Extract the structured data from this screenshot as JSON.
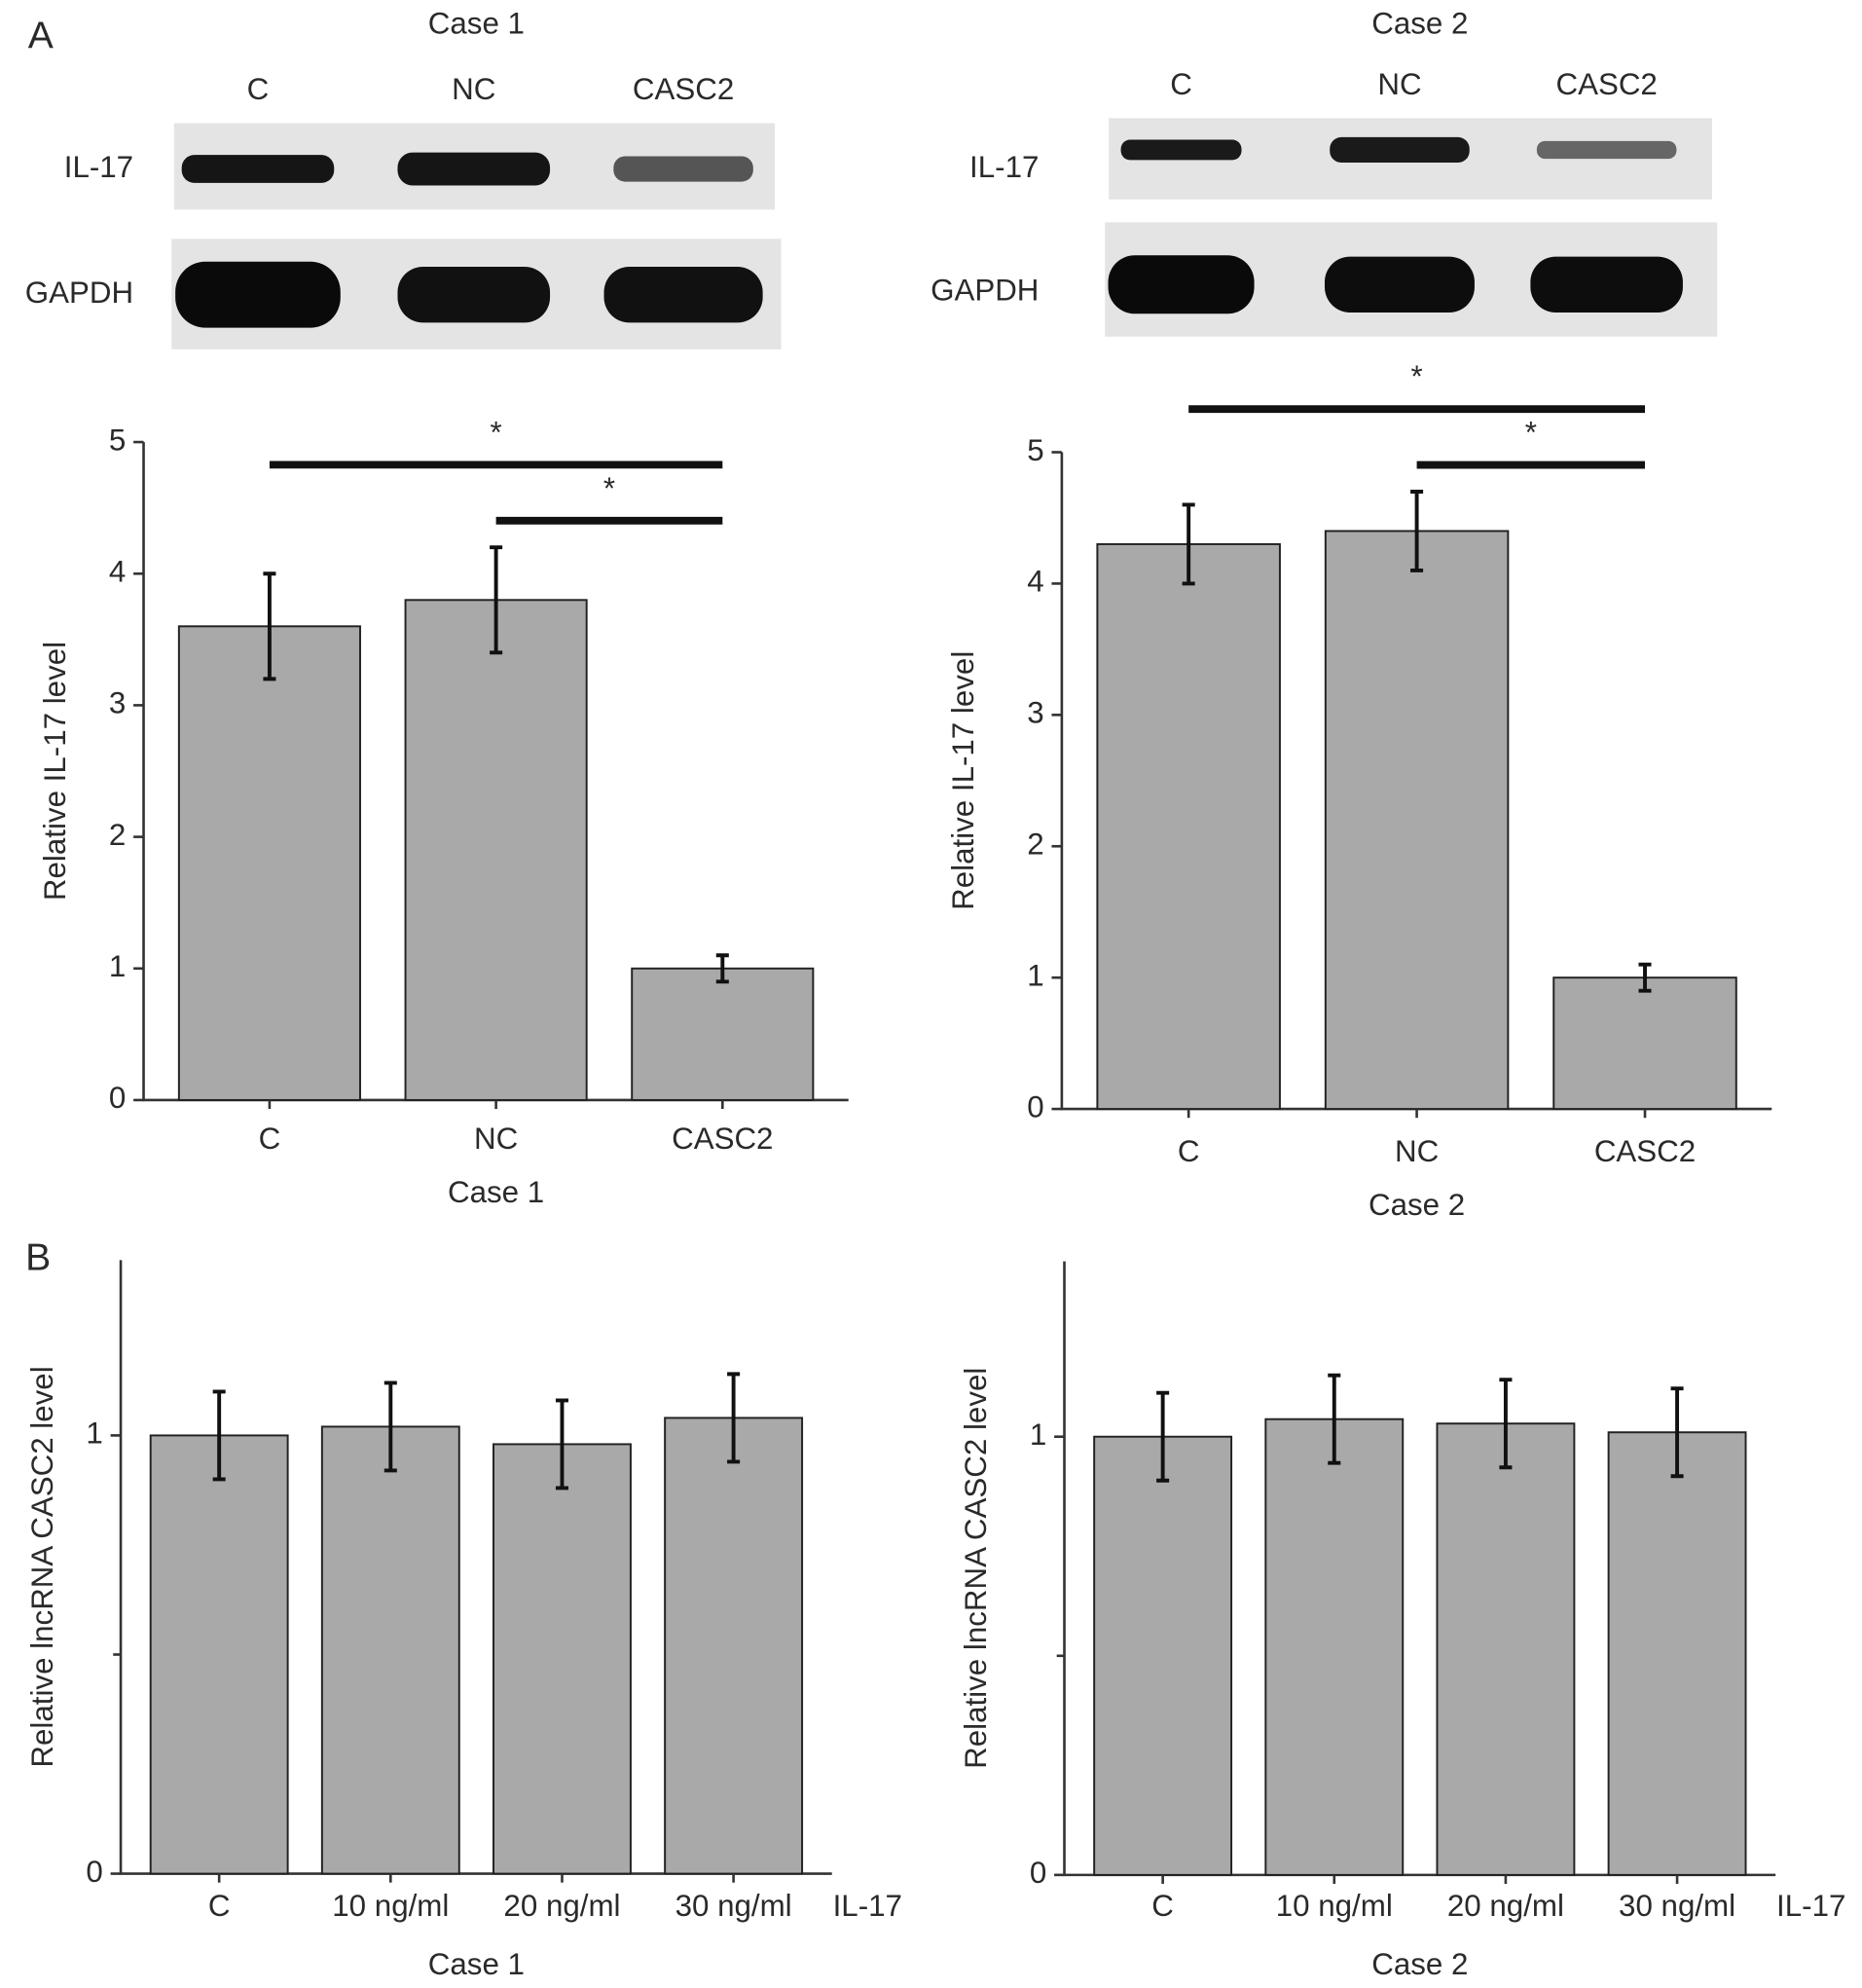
{
  "panel_labels": [
    "A",
    "B"
  ],
  "blots": [
    {
      "title": "Case 1",
      "lanes": [
        "C",
        "NC",
        "CASC2"
      ],
      "rows": [
        "IL-17",
        "GAPDH"
      ]
    },
    {
      "title": "Case 2",
      "lanes": [
        "C",
        "NC",
        "CASC2"
      ],
      "rows": [
        "IL-17",
        "GAPDH"
      ]
    }
  ],
  "chart_data": [
    {
      "type": "bar",
      "ylabel": "Relative IL-17 level",
      "xlabel": "Case 1",
      "categories": [
        "C",
        "NC",
        "CASC2"
      ],
      "series": [
        {
          "color": "#a9a9a9",
          "values": [
            3.6,
            3.8,
            1.0
          ],
          "errors": [
            0.4,
            0.4,
            0.1
          ]
        }
      ],
      "ylim": [
        0,
        5
      ],
      "yticks": [
        0,
        1,
        2,
        3,
        4,
        5
      ],
      "annotations": [
        {
          "text": "*",
          "categories": [
            "NC",
            "CASC2"
          ]
        },
        {
          "text": "*",
          "categories": [
            "C",
            "CASC2"
          ]
        }
      ]
    },
    {
      "type": "bar",
      "ylabel": "Relative IL-17 level",
      "xlabel": "Case 2",
      "categories": [
        "C",
        "NC",
        "CASC2"
      ],
      "series": [
        {
          "color": "#a9a9a9",
          "values": [
            4.3,
            4.4,
            1.0
          ],
          "errors": [
            0.3,
            0.3,
            0.1
          ]
        }
      ],
      "ylim": [
        0,
        5
      ],
      "yticks": [
        0,
        1,
        2,
        3,
        4,
        5
      ],
      "annotations": [
        {
          "text": "*",
          "categories": [
            "NC",
            "CASC2"
          ]
        },
        {
          "text": "*",
          "categories": [
            "C",
            "CASC2"
          ]
        }
      ]
    },
    {
      "type": "bar",
      "ylabel": "Relative lncRNA CASC2 level",
      "xlabel": "Case 1",
      "x_unit_label": "IL-17",
      "categories": [
        "C",
        "10 ng/ml",
        "20 ng/ml",
        "30 ng/ml"
      ],
      "series": [
        {
          "color": "#a9a9a9",
          "values": [
            1.0,
            1.02,
            0.98,
            1.04
          ],
          "errors": [
            0.1,
            0.1,
            0.1,
            0.1
          ]
        }
      ],
      "ylim": [
        0,
        1.4
      ],
      "yticks": [
        0,
        1
      ],
      "minor_yticks": [
        0.5
      ]
    },
    {
      "type": "bar",
      "ylabel": "Relative lncRNA CASC2 level",
      "xlabel": "Case 2",
      "x_unit_label": "IL-17",
      "categories": [
        "C",
        "10 ng/ml",
        "20 ng/ml",
        "30 ng/ml"
      ],
      "series": [
        {
          "color": "#a9a9a9",
          "values": [
            1.0,
            1.04,
            1.03,
            1.01
          ],
          "errors": [
            0.1,
            0.1,
            0.1,
            0.1
          ]
        }
      ],
      "ylim": [
        0,
        1.4
      ],
      "yticks": [
        0,
        1
      ],
      "minor_yticks": [
        0.5
      ]
    }
  ]
}
